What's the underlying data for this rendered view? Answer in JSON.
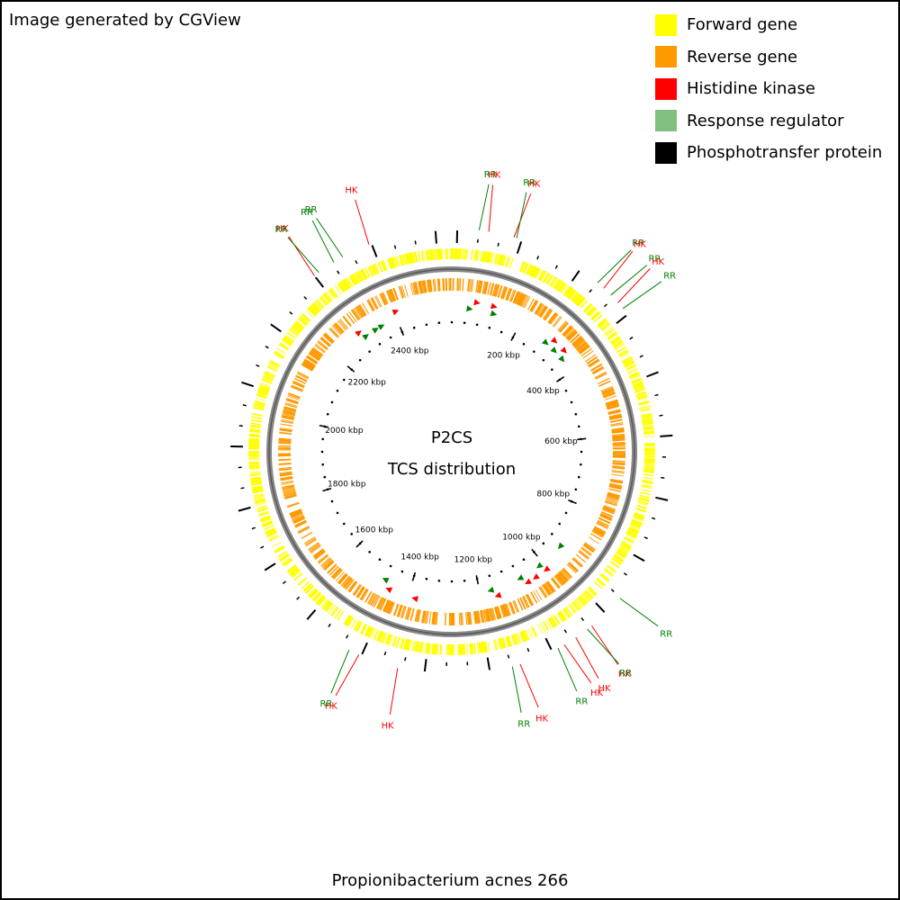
{
  "credit": "Image generated by CGView",
  "legend": [
    {
      "label": "Forward gene",
      "color": "#ffff00"
    },
    {
      "label": "Reverse gene",
      "color": "#ff9900"
    },
    {
      "label": "Histidine kinase",
      "color": "#ff0000"
    },
    {
      "label": "Response regulator",
      "color": "#80c080"
    },
    {
      "label": "Phosphotransfer protein",
      "color": "#000000"
    }
  ],
  "title_line1": "P2CS",
  "title_line2": "TCS distribution",
  "organism": "Propionibacterium acnes 266",
  "genome_kbp": 2560,
  "ticks": [
    {
      "kbp": 200,
      "label": "200 kbp"
    },
    {
      "kbp": 400,
      "label": "400 kbp"
    },
    {
      "kbp": 600,
      "label": "600 kbp"
    },
    {
      "kbp": 800,
      "label": "800 kbp"
    },
    {
      "kbp": 1000,
      "label": "1000 kbp"
    },
    {
      "kbp": 1200,
      "label": "1200 kbp"
    },
    {
      "kbp": 1400,
      "label": "1400 kbp"
    },
    {
      "kbp": 1600,
      "label": "1600 kbp"
    },
    {
      "kbp": 1800,
      "label": "1800 kbp"
    },
    {
      "kbp": 2000,
      "label": "2000 kbp"
    },
    {
      "kbp": 2200,
      "label": "2200 kbp"
    },
    {
      "kbp": 2400,
      "label": "2400 kbp"
    }
  ],
  "tcs_labels": [
    {
      "kbp": 50,
      "type": "RR"
    },
    {
      "kbp": 68,
      "type": "HK"
    },
    {
      "kbp": 115,
      "type": "HK"
    },
    {
      "kbp": 120,
      "type": "RR"
    },
    {
      "kbp": 290,
      "type": "RR"
    },
    {
      "kbp": 305,
      "type": "HK"
    },
    {
      "kbp": 323,
      "type": "RR"
    },
    {
      "kbp": 342,
      "type": "HK"
    },
    {
      "kbp": 356,
      "type": "RR"
    },
    {
      "kbp": 932,
      "type": "RR"
    },
    {
      "kbp": 1004,
      "type": "HK"
    },
    {
      "kbp": 1014,
      "type": "RR"
    },
    {
      "kbp": 1040,
      "type": "HK"
    },
    {
      "kbp": 1065,
      "type": "HK"
    },
    {
      "kbp": 1078,
      "type": "RR"
    },
    {
      "kbp": 1153,
      "type": "HK"
    },
    {
      "kbp": 1168,
      "type": "RR"
    },
    {
      "kbp": 1380,
      "type": "HK"
    },
    {
      "kbp": 1455,
      "type": "HK"
    },
    {
      "kbp": 1475,
      "type": "RR"
    },
    {
      "kbp": 2290,
      "type": "HK"
    },
    {
      "kbp": 2300,
      "type": "RR"
    },
    {
      "kbp": 2333,
      "type": "RR"
    },
    {
      "kbp": 2352,
      "type": "RR"
    },
    {
      "kbp": 2405,
      "type": "HK"
    }
  ]
}
